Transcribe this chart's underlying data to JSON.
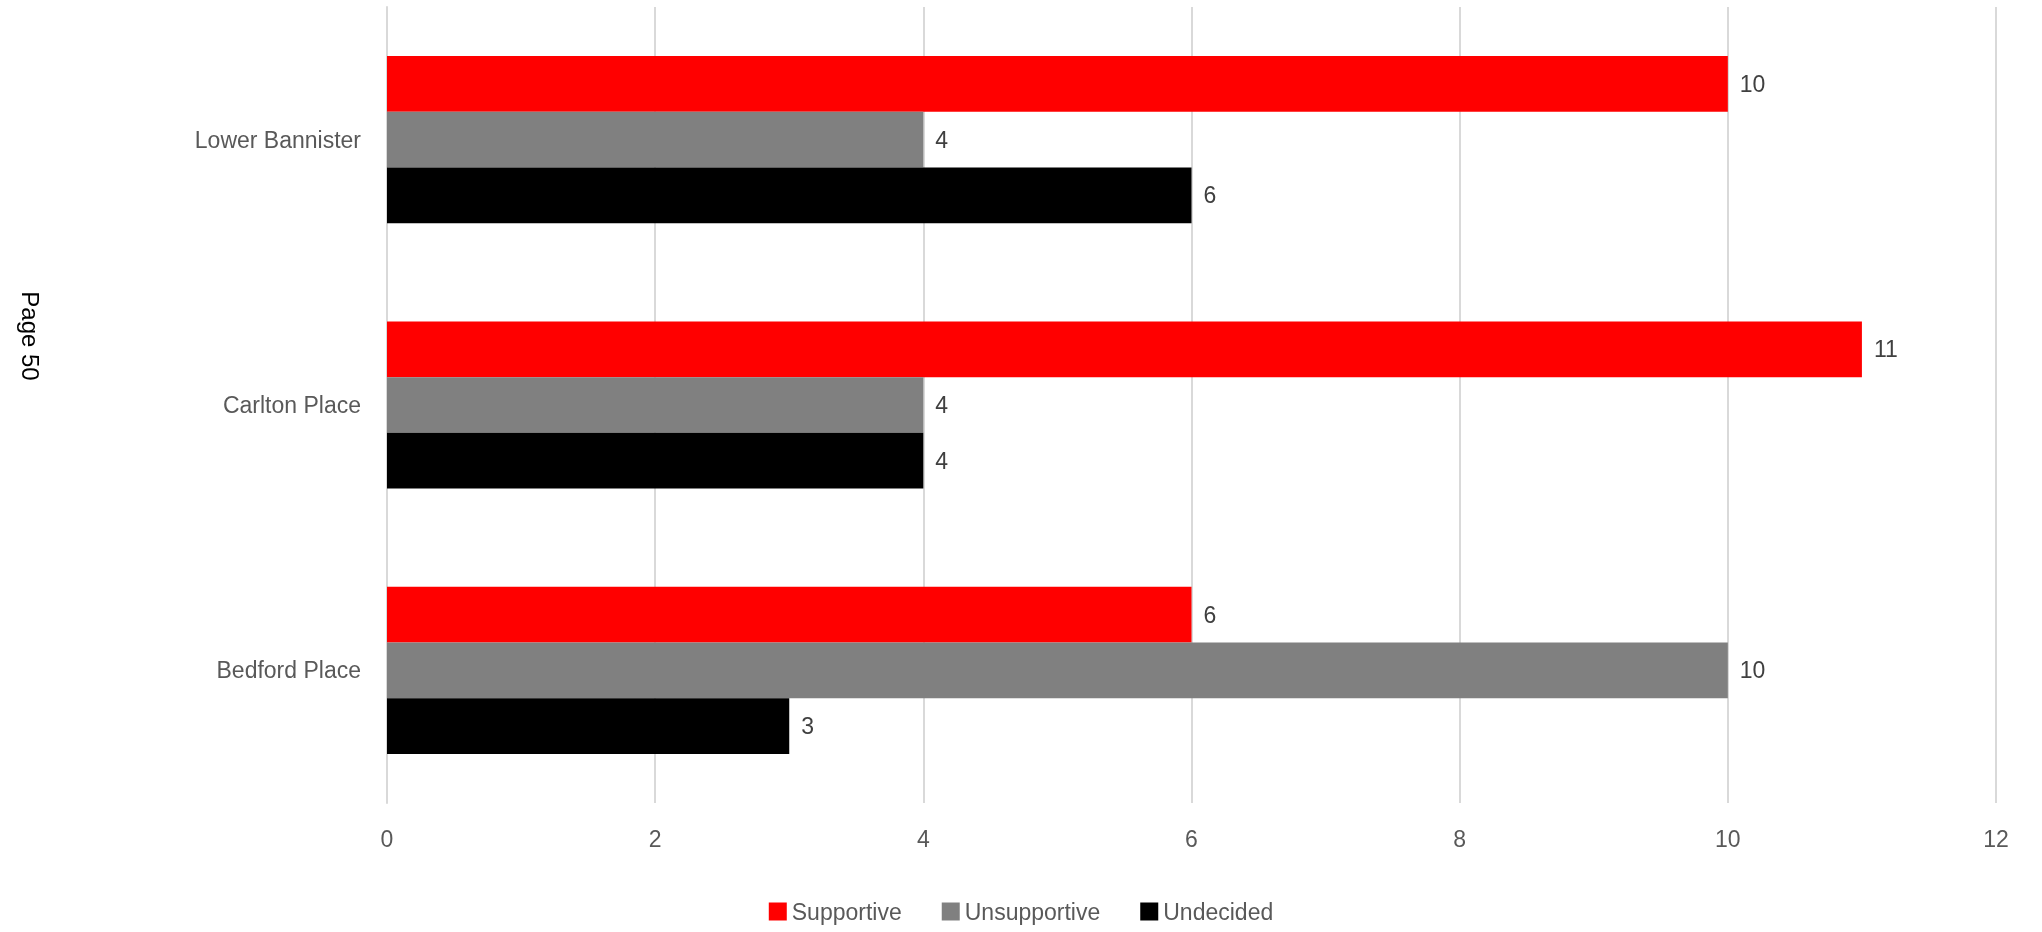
{
  "chart_data": {
    "type": "bar",
    "orientation": "horizontal",
    "categories": [
      "Lower Bannister",
      "Carlton Place",
      "Bedford Place"
    ],
    "series": [
      {
        "name": "Supportive",
        "color": "#ff0000",
        "values": [
          10,
          11,
          6
        ]
      },
      {
        "name": "Unsupportive",
        "color": "#808080",
        "values": [
          4,
          4,
          10
        ]
      },
      {
        "name": "Undecided",
        "color": "#000000",
        "values": [
          6,
          4,
          3
        ]
      }
    ],
    "xlim": [
      0,
      12
    ],
    "xticks": [
      0,
      2,
      4,
      6,
      8,
      10,
      12
    ],
    "data_labels": true,
    "grid": "x",
    "legend": "bottom",
    "annotations": [
      "Page 50"
    ]
  }
}
